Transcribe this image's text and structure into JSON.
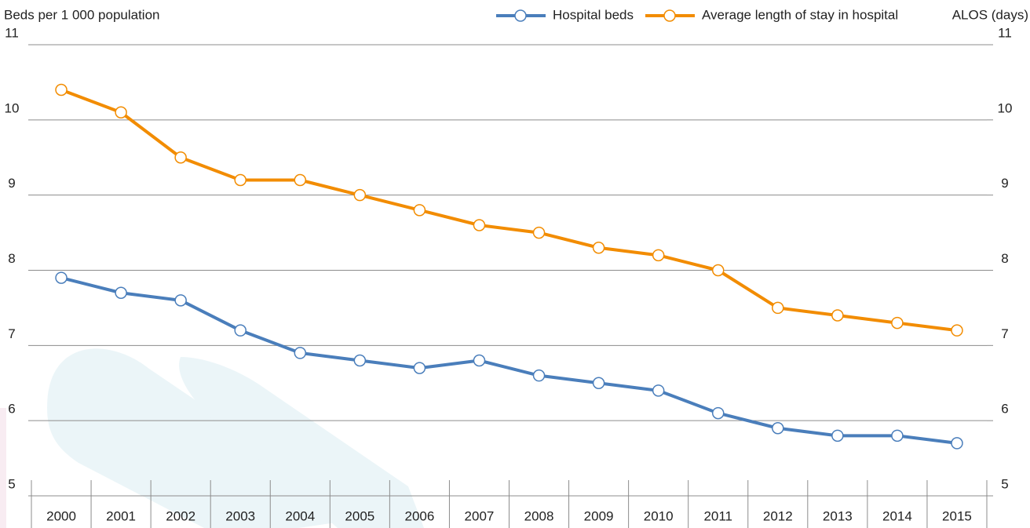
{
  "chart_data": {
    "type": "line",
    "y_label": "Beds per 1 000 population",
    "y2_label": "ALOS (days)",
    "categories": [
      "2000",
      "2001",
      "2002",
      "2003",
      "2004",
      "2005",
      "2006",
      "2007",
      "2008",
      "2009",
      "2010",
      "2011",
      "2012",
      "2013",
      "2014",
      "2015"
    ],
    "series": [
      {
        "name": "Hospital beds",
        "color": "#4a7ebb",
        "values": [
          7.9,
          7.7,
          7.6,
          7.2,
          6.9,
          6.8,
          6.7,
          6.8,
          6.6,
          6.5,
          6.4,
          6.1,
          5.9,
          5.8,
          5.8,
          5.7
        ]
      },
      {
        "name": "Average length of stay in hospital",
        "color": "#f28c00",
        "axis": "y2",
        "values": [
          10.4,
          10.1,
          9.5,
          9.2,
          9.2,
          9.0,
          8.8,
          8.6,
          8.5,
          8.3,
          8.2,
          8.0,
          7.5,
          7.4,
          7.3,
          7.2
        ]
      }
    ],
    "ylim": [
      5,
      11
    ],
    "yticks": [
      5,
      6,
      7,
      8,
      9,
      10,
      11
    ],
    "y2lim": [
      5,
      11
    ],
    "y2ticks": [
      5,
      6,
      7,
      8,
      9,
      10,
      11
    ],
    "grid": true,
    "legend": "upper right"
  }
}
